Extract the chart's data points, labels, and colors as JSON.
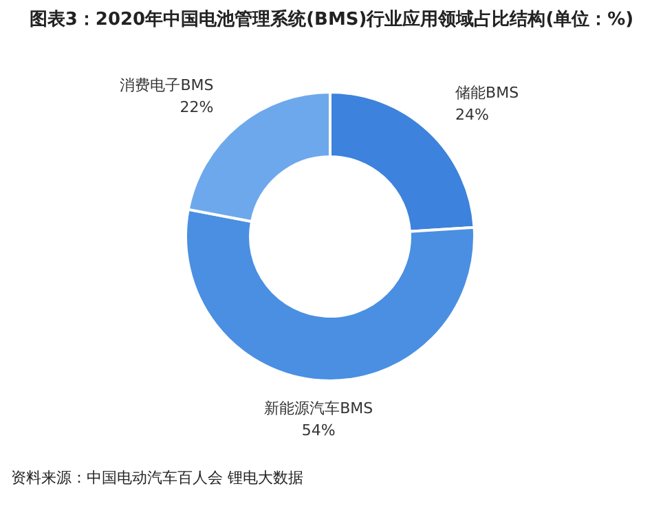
{
  "chart_data": {
    "type": "donut",
    "title": "图表3：2020年中国电池管理系统(BMS)行业应用领域占比结构(单位：%)",
    "categories": [
      "储能BMS",
      "新能源汽车BMS",
      "消费电子BMS"
    ],
    "values": [
      24,
      54,
      22
    ],
    "colors": [
      "#3d82dc",
      "#4a8fe2",
      "#6ea8ec"
    ],
    "value_labels": [
      "24%",
      "54%",
      "22%"
    ],
    "legend": false,
    "annotations": [
      "资料来源：中国电动汽车百人会 锂电大数据"
    ]
  }
}
